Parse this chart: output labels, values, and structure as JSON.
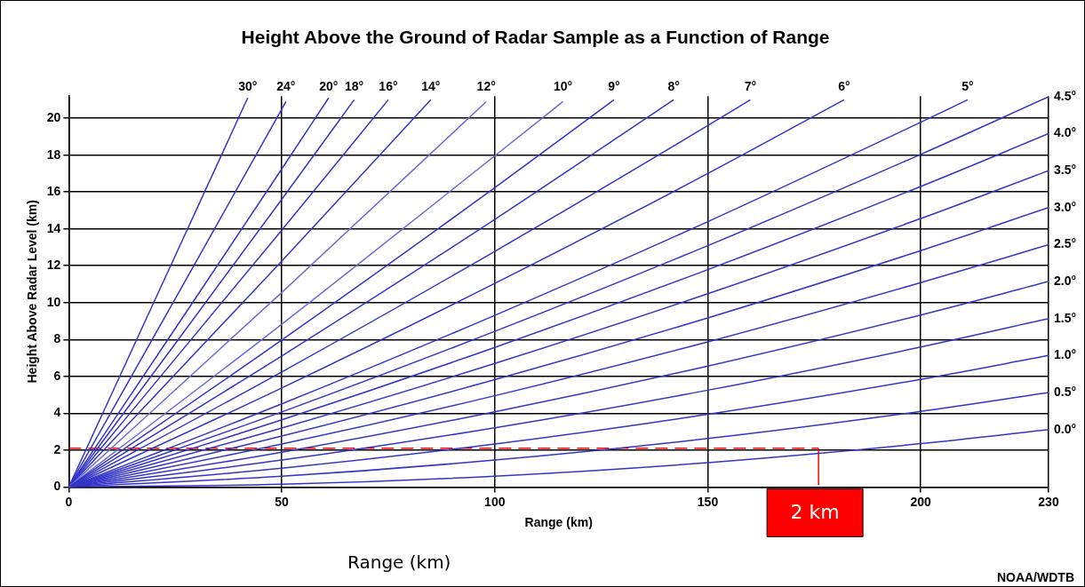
{
  "chart_data": {
    "type": "line",
    "title": "Height Above the Ground of Radar Sample as a Function of Range",
    "xlabel": "Range (km)",
    "ylabel": "Height Above Radar Level (km)",
    "xlim": [
      0,
      230
    ],
    "xticks": [
      0,
      50,
      100,
      150,
      200,
      230
    ],
    "ylim": [
      0,
      21.2
    ],
    "yticks": [
      0,
      2,
      4,
      6,
      8,
      10,
      12,
      14,
      16,
      18,
      20
    ],
    "grid": true,
    "legend": false,
    "marker": "none",
    "line_style": "solid",
    "series": [
      {
        "name": "0.0°",
        "color": "#3434c8",
        "x": [
          0,
          50,
          100,
          150,
          200,
          230
        ],
        "values": [
          0,
          0.15,
          0.59,
          1.32,
          2.35,
          3.11
        ]
      },
      {
        "name": "0.5°",
        "color": "#3434c8",
        "x": [
          0,
          50,
          100,
          150,
          200,
          230
        ],
        "values": [
          0,
          0.58,
          1.46,
          2.63,
          4.1,
          5.12
        ]
      },
      {
        "name": "1.0°",
        "color": "#3434c8",
        "x": [
          0,
          50,
          100,
          150,
          200,
          230
        ],
        "values": [
          0,
          1.02,
          2.33,
          3.94,
          5.84,
          7.13
        ]
      },
      {
        "name": "1.5°",
        "color": "#3434c8",
        "x": [
          0,
          50,
          100,
          150,
          200,
          230
        ],
        "values": [
          0,
          1.46,
          3.21,
          5.25,
          7.59,
          9.13
        ]
      },
      {
        "name": "2.0°",
        "color": "#3434c8",
        "x": [
          0,
          50,
          100,
          150,
          200,
          230
        ],
        "values": [
          0,
          1.89,
          4.08,
          6.56,
          9.33,
          11.14
        ]
      },
      {
        "name": "2.5°",
        "color": "#3434c8",
        "x": [
          0,
          50,
          100,
          150,
          200,
          230
        ],
        "values": [
          0,
          2.33,
          4.95,
          7.87,
          11.08,
          13.14
        ]
      },
      {
        "name": "3.0°",
        "color": "#3434c8",
        "x": [
          0,
          50,
          100,
          150,
          200,
          230
        ],
        "values": [
          0,
          2.76,
          5.82,
          9.17,
          12.82,
          15.15
        ]
      },
      {
        "name": "3.5°",
        "color": "#3434c8",
        "x": [
          0,
          50,
          100,
          150,
          200,
          230
        ],
        "values": [
          0,
          3.2,
          6.7,
          10.48,
          14.56,
          17.16
        ]
      },
      {
        "name": "4.0°",
        "color": "#3434c8",
        "x": [
          0,
          50,
          100,
          150,
          200,
          230
        ],
        "values": [
          0,
          3.64,
          7.57,
          11.79,
          16.3,
          19.16
        ]
      },
      {
        "name": "4.5°",
        "color": "#3434c8",
        "x": [
          0,
          50,
          100,
          150,
          200,
          230
        ],
        "values": [
          0,
          4.07,
          8.44,
          13.09,
          18.04,
          21.16
        ]
      },
      {
        "name": "5°",
        "color": "#3434c8",
        "x": [
          0,
          50,
          100,
          150,
          200,
          211
        ],
        "values": [
          0,
          4.51,
          9.31,
          14.39,
          19.78,
          21.0
        ]
      },
      {
        "name": "6°",
        "color": "#3434c8",
        "x": [
          0,
          50,
          100,
          150,
          182
        ],
        "values": [
          0,
          5.37,
          11.04,
          17.0,
          21.0
        ]
      },
      {
        "name": "7°",
        "color": "#3434c8",
        "x": [
          0,
          50,
          100,
          150,
          160
        ],
        "values": [
          0,
          6.24,
          12.78,
          19.6,
          21.0
        ]
      },
      {
        "name": "8°",
        "color": "#3434c8",
        "x": [
          0,
          50,
          100,
          142
        ],
        "values": [
          0,
          7.11,
          14.51,
          21.0
        ]
      },
      {
        "name": "9°",
        "color": "#3434c8",
        "x": [
          0,
          50,
          100,
          128
        ],
        "values": [
          0,
          7.97,
          16.23,
          21.0
        ]
      },
      {
        "name": "10°",
        "color": "#6a6ad8",
        "x": [
          0,
          50,
          100,
          116
        ],
        "values": [
          0,
          8.83,
          17.96,
          20.9
        ]
      },
      {
        "name": "12°",
        "color": "#6a6ad8",
        "x": [
          0,
          50,
          98
        ],
        "values": [
          0,
          10.55,
          20.9
        ]
      },
      {
        "name": "14°",
        "color": "#3434c8",
        "x": [
          0,
          50,
          85
        ],
        "values": [
          0,
          12.25,
          21.0
        ]
      },
      {
        "name": "16°",
        "color": "#3434c8",
        "x": [
          0,
          50,
          75
        ],
        "values": [
          0,
          13.93,
          21.0
        ]
      },
      {
        "name": "18°",
        "color": "#3434c8",
        "x": [
          0,
          25,
          50,
          67
        ],
        "values": [
          0,
          7.77,
          15.6,
          21.0
        ]
      },
      {
        "name": "20°",
        "color": "#3434c8",
        "x": [
          0,
          25,
          50,
          61
        ],
        "values": [
          0,
          8.59,
          17.25,
          21.1
        ]
      },
      {
        "name": "24°",
        "color": "#3434c8",
        "x": [
          0,
          25,
          51
        ],
        "values": [
          0,
          10.21,
          20.9
        ]
      },
      {
        "name": "30°",
        "color": "#3434c8",
        "x": [
          0,
          25,
          42
        ],
        "values": [
          0,
          12.54,
          21.1
        ]
      },
      {
        "color": "#ff0000",
        "line_style": "dashed",
        "x": [
          0,
          176
        ],
        "values": [
          2.1,
          2.1
        ]
      },
      {
        "color": "#ff0000",
        "line_style": "solid",
        "x": [
          176,
          176
        ],
        "values": [
          2.1,
          0.1
        ]
      }
    ],
    "annotations": [
      {
        "text": "2 km",
        "x": 176,
        "y": 0
      },
      "Range (km)",
      "NOAA/WDTB"
    ]
  }
}
